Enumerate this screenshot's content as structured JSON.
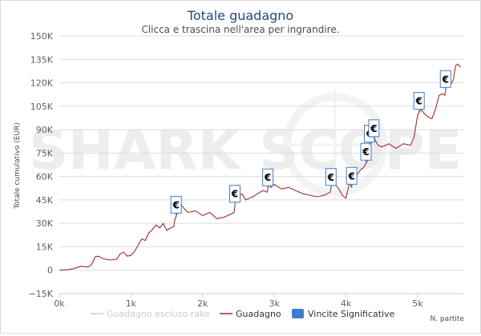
{
  "chart_data": {
    "type": "line",
    "title": "Totale guadagno",
    "subtitle": "Clicca e trascina nell'area per ingrandire.",
    "ylabel": "Totale cumulativo (EUR)",
    "xlabel": "N. partite",
    "watermark": "SHARK SCOPE",
    "xlim": [
      0,
      5650
    ],
    "ylim": [
      -15000,
      150000
    ],
    "x_ticks": [
      {
        "value": 0,
        "label": "0k"
      },
      {
        "value": 1000,
        "label": "1k"
      },
      {
        "value": 2000,
        "label": "2k"
      },
      {
        "value": 3000,
        "label": "3k"
      },
      {
        "value": 4000,
        "label": "4k"
      },
      {
        "value": 5000,
        "label": "5k"
      }
    ],
    "y_ticks": [
      {
        "value": -15000,
        "label": "−15K"
      },
      {
        "value": 0,
        "label": "0"
      },
      {
        "value": 15000,
        "label": "15K"
      },
      {
        "value": 30000,
        "label": "30K"
      },
      {
        "value": 45000,
        "label": "45K"
      },
      {
        "value": 60000,
        "label": "60K"
      },
      {
        "value": 75000,
        "label": "75K"
      },
      {
        "value": 90000,
        "label": "90K"
      },
      {
        "value": 105000,
        "label": "105K"
      },
      {
        "value": 120000,
        "label": "120K"
      },
      {
        "value": 135000,
        "label": "135K"
      },
      {
        "value": 150000,
        "label": "150K"
      }
    ],
    "grid": true,
    "legend_position": "bottom",
    "series": [
      {
        "name": "Guadagno escluso rake",
        "color": "#cccccc",
        "visible": false,
        "x": [],
        "y": []
      },
      {
        "name": "Guadagno",
        "color": "#a52a2a",
        "visible": true,
        "x": [
          0,
          100,
          200,
          300,
          400,
          450,
          500,
          550,
          600,
          650,
          700,
          800,
          850,
          900,
          950,
          1000,
          1050,
          1100,
          1150,
          1200,
          1250,
          1300,
          1350,
          1400,
          1450,
          1500,
          1550,
          1600,
          1610,
          1650,
          1700,
          1750,
          1800,
          1900,
          2000,
          2100,
          2200,
          2300,
          2400,
          2440,
          2460,
          2500,
          2550,
          2600,
          2700,
          2800,
          2850,
          2900,
          2930,
          2950,
          3000,
          3100,
          3200,
          3300,
          3400,
          3500,
          3600,
          3700,
          3780,
          3820,
          3850,
          3900,
          3950,
          4000,
          4050,
          4080,
          4100,
          4150,
          4200,
          4250,
          4300,
          4330,
          4360,
          4400,
          4450,
          4500,
          4600,
          4700,
          4800,
          4900,
          4950,
          5000,
          5020,
          5050,
          5100,
          5150,
          5200,
          5250,
          5300,
          5350,
          5380,
          5400,
          5450,
          5500,
          5530,
          5560,
          5600
        ],
        "y": [
          0,
          200,
          1000,
          2500,
          2000,
          3500,
          8500,
          9000,
          7500,
          7000,
          6500,
          7000,
          10500,
          11500,
          9000,
          9500,
          12000,
          16000,
          20000,
          19000,
          24000,
          26000,
          29000,
          27000,
          30000,
          25500,
          27000,
          28000,
          32000,
          37000,
          42000,
          39000,
          37000,
          38000,
          35000,
          37000,
          33000,
          34000,
          36000,
          37000,
          46000,
          47000,
          49000,
          45000,
          47000,
          50000,
          51000,
          50000,
          56000,
          53000,
          55000,
          52000,
          53000,
          51000,
          49000,
          48000,
          47000,
          48000,
          50000,
          59000,
          55000,
          52000,
          48000,
          46000,
          56000,
          53000,
          62000,
          61000,
          64000,
          66000,
          70000,
          80000,
          82000,
          84000,
          80000,
          79000,
          81000,
          78000,
          81000,
          80000,
          85000,
          99000,
          101000,
          103000,
          100000,
          98000,
          97000,
          103000,
          112000,
          113000,
          112000,
          118000,
          118000,
          122000,
          131000,
          132000,
          130000
        ]
      }
    ],
    "significant_wins": {
      "name": "Vincite Significative",
      "color": "#3d7ed2",
      "symbol": "€",
      "x": [
        1630,
        2450,
        2910,
        3790,
        4080,
        4280,
        4330,
        4390,
        5020,
        5390
      ]
    }
  }
}
